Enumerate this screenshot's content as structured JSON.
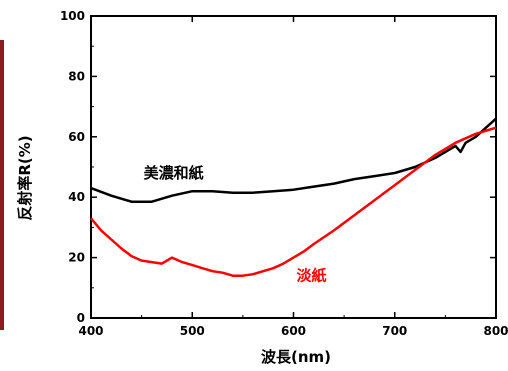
{
  "chart_data": {
    "type": "line",
    "xlabel": "波長(nm)",
    "ylabel": "反射率R(%)",
    "xlim": [
      400,
      800
    ],
    "ylim": [
      0,
      100
    ],
    "xticks": [
      400,
      500,
      600,
      700,
      800
    ],
    "xtick_labels": [
      "400",
      "500",
      "600",
      "700",
      "800"
    ],
    "yticks": [
      0,
      20,
      40,
      60,
      80,
      100
    ],
    "ytick_labels": [
      "0",
      "20",
      "40",
      "60",
      "80",
      "100"
    ],
    "grid": false,
    "series": [
      {
        "name": "美濃和紙",
        "color": "#000000",
        "x": [
          400,
          420,
          440,
          460,
          480,
          500,
          520,
          540,
          560,
          580,
          600,
          620,
          640,
          660,
          680,
          700,
          720,
          740,
          760,
          765,
          770,
          780,
          790,
          800
        ],
        "y": [
          43,
          40.5,
          38.5,
          38.5,
          40.5,
          42,
          42,
          41.5,
          41.5,
          42,
          42.5,
          43.5,
          44.5,
          46,
          47,
          48,
          50,
          53,
          57,
          55,
          58,
          60,
          63,
          66
        ]
      },
      {
        "name": "淡紙",
        "color": "#ff0000",
        "x": [
          400,
          410,
          420,
          430,
          440,
          450,
          460,
          470,
          480,
          490,
          500,
          510,
          520,
          530,
          540,
          550,
          560,
          570,
          580,
          590,
          600,
          610,
          620,
          640,
          660,
          680,
          700,
          720,
          740,
          760,
          780,
          800
        ],
        "y": [
          33,
          29,
          26,
          23,
          20.5,
          19,
          18.5,
          18,
          20,
          18.5,
          17.5,
          16.5,
          15.5,
          15,
          14,
          14,
          14.5,
          15.5,
          16.5,
          18,
          20,
          22,
          24.5,
          29,
          34,
          39,
          44,
          49,
          54,
          58,
          61,
          63
        ]
      }
    ],
    "labels": [
      {
        "text": "美濃和紙",
        "color": "#000000",
        "x": 452,
        "y": 48
      },
      {
        "text": "淡紙",
        "color": "#ff0000",
        "x": 603,
        "y": 14
      }
    ]
  }
}
